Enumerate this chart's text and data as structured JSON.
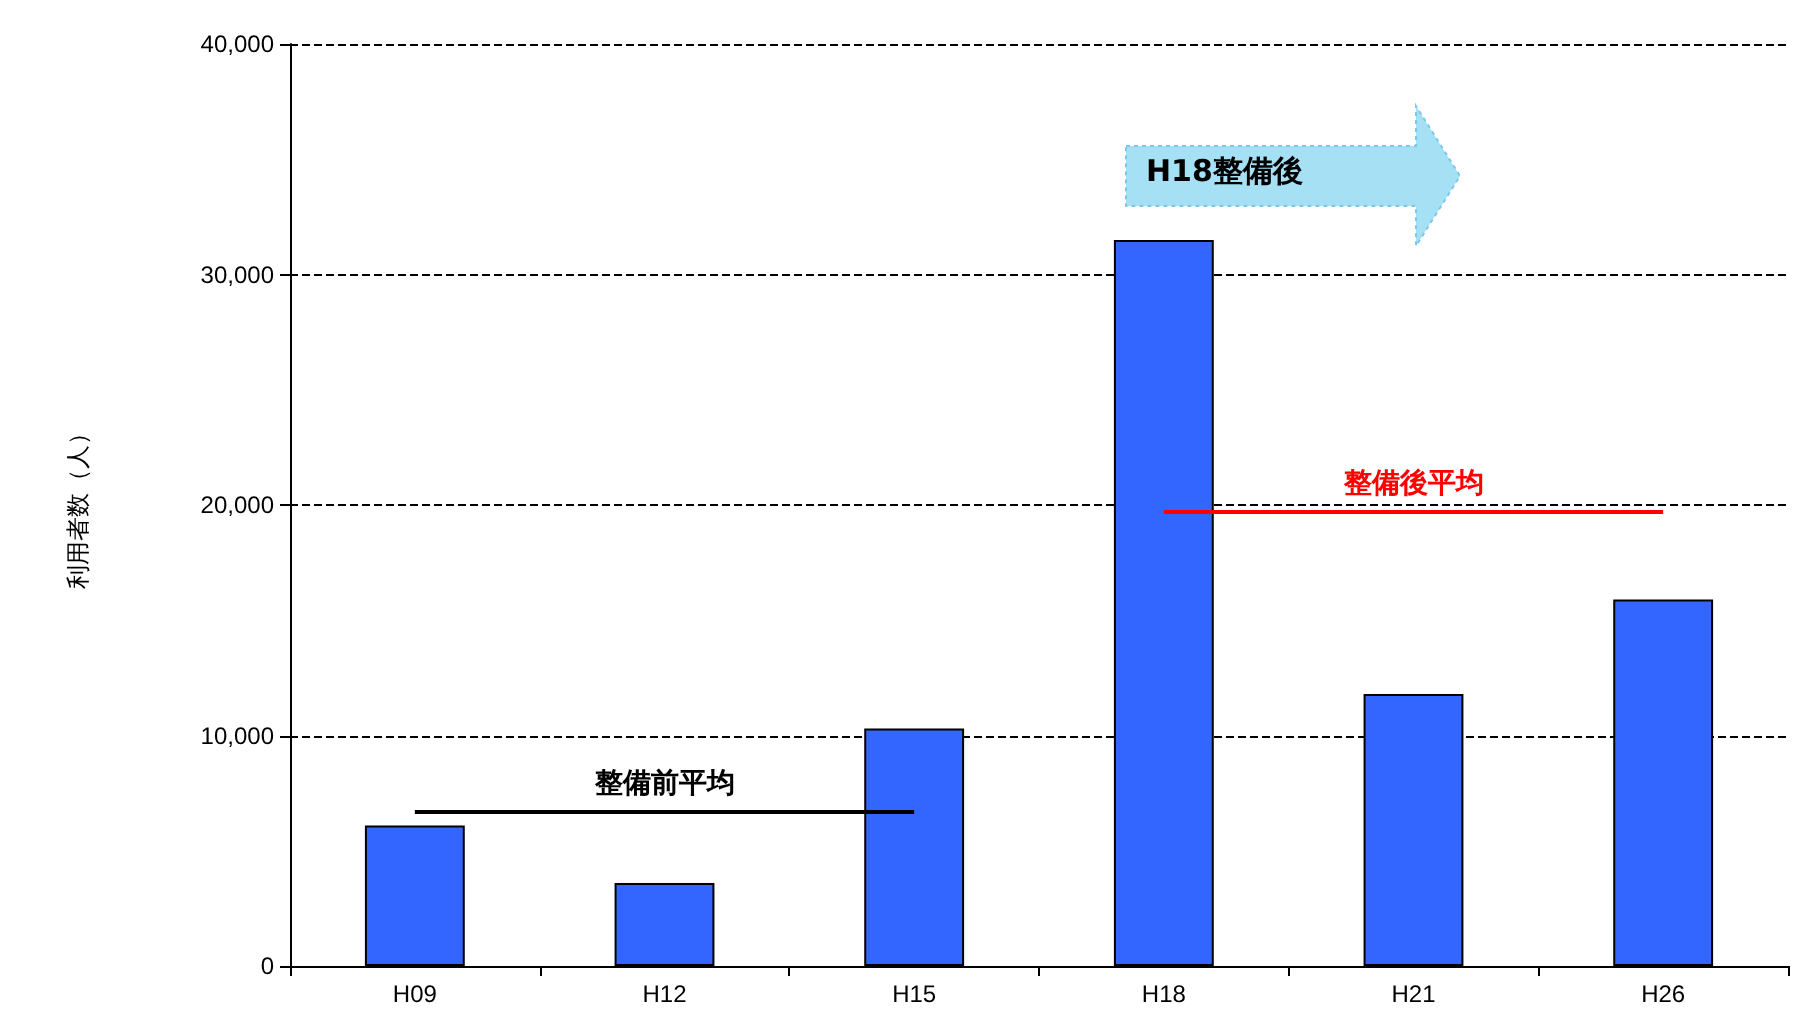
{
  "chart_data": {
    "type": "bar",
    "ylabel": "利用者数（人）",
    "categories": [
      "H09",
      "H12",
      "H15",
      "H18",
      "H21",
      "H26"
    ],
    "values": [
      6100,
      3600,
      10300,
      31500,
      11800,
      15900
    ],
    "color": "#3366ff",
    "ylim": [
      0,
      40000
    ],
    "yticks": [
      0,
      {
        "value": 10000,
        "label": "10,000"
      },
      {
        "value": 20000,
        "label": "20,000"
      },
      {
        "value": 30000,
        "label": "30,000"
      },
      {
        "value": 40000,
        "label": "40,000"
      }
    ],
    "grid": "y",
    "ref_lines": [
      {
        "axis": "y",
        "value": 6700,
        "label": "整備前平均",
        "color": "#000000"
      },
      {
        "axis": "y",
        "value": 19700,
        "label": "整備後平均",
        "color": "#ff0000"
      }
    ],
    "annotations": [
      "H18整備後"
    ]
  }
}
